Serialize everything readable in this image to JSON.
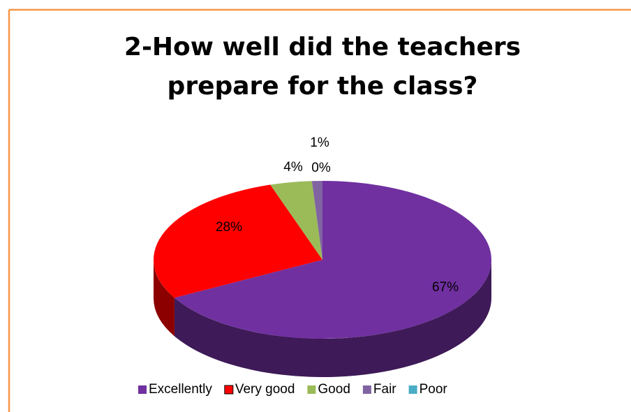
{
  "chart_data": {
    "type": "pie",
    "title": "2-How well did the teachers prepare for the class?",
    "categories": [
      "Excellently",
      "Very good",
      "Good",
      "Fair",
      "Poor"
    ],
    "values": [
      67,
      28,
      4,
      1,
      0
    ],
    "value_labels": [
      "67%",
      "28%",
      "4%",
      "1%",
      "0%"
    ],
    "colors": [
      "#7030a0",
      "#ff0000",
      "#9bbb59",
      "#8064a2",
      "#4bacc6"
    ],
    "legend": "bottom"
  }
}
